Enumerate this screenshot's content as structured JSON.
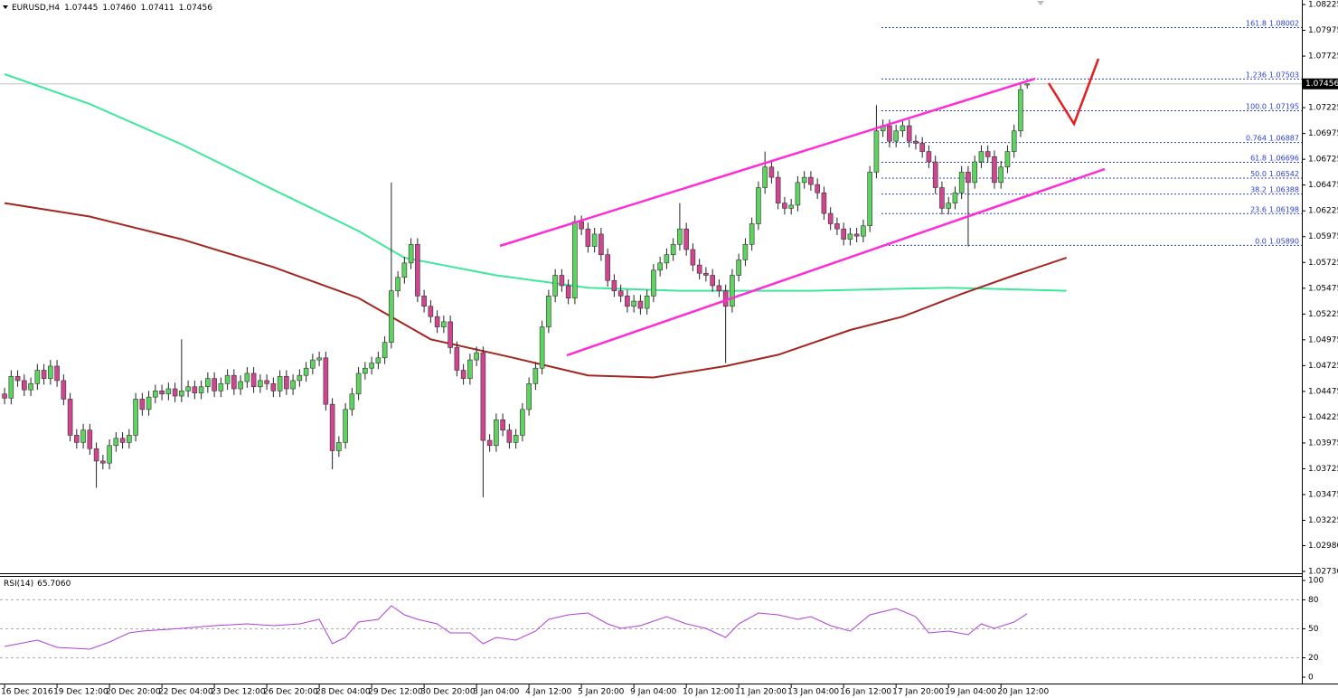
{
  "chart_data": {
    "type": "candlestick",
    "symbol": "EURUSD,H4",
    "header_values": [
      1.07445,
      {
        "value": 1.0746,
        "label": "1.07460"
      },
      1.07411,
      1.07456
    ],
    "xlim": [
      -0.7,
      197.9
    ],
    "ylim": [
      1.0273,
      1.08225
    ],
    "yticks": [
      1.08225,
      1.07975,
      1.07725,
      1.07225,
      1.06975,
      1.06725,
      1.06475,
      1.06225,
      1.05975,
      1.05725,
      1.05475,
      1.05225,
      1.04975,
      1.04725,
      1.04475,
      1.04225,
      1.03975,
      1.03725,
      1.03475,
      1.03225,
      {
        "value": 1.0298,
        "label": "1.02980"
      },
      {
        "value": 1.0273,
        "label": "1.02730"
      }
    ],
    "xticks": [
      {
        "value": 0,
        "label": "16 Dec 2016"
      },
      {
        "value": 8,
        "label": "19 Dec 12:00"
      },
      {
        "value": 16,
        "label": "20 Dec 20:00"
      },
      {
        "value": 24,
        "label": "22 Dec 04:00"
      },
      {
        "value": 32,
        "label": "23 Dec 12:00"
      },
      {
        "value": 40,
        "label": "26 Dec 20:00"
      },
      {
        "value": 48,
        "label": "28 Dec 04:00"
      },
      {
        "value": 56,
        "label": "29 Dec 12:00"
      },
      {
        "value": 64,
        "label": "30 Dec 20:00"
      },
      {
        "value": 72,
        "label": "3 Jan 04:00"
      },
      {
        "value": 80,
        "label": "4 Jan 12:00"
      },
      {
        "value": 88,
        "label": "5 Jan 20:00"
      },
      {
        "value": 96,
        "label": "9 Jan 04:00"
      },
      {
        "value": 104,
        "label": "10 Jan 12:00"
      },
      {
        "value": 112,
        "label": "11 Jan 20:00"
      },
      {
        "value": 120,
        "label": "13 Jan 04:00"
      },
      {
        "value": 128,
        "label": "16 Jan 12:00"
      },
      {
        "value": 136,
        "label": "17 Jan 20:00"
      },
      {
        "value": 144,
        "label": "19 Jan 04:00"
      },
      {
        "value": 152,
        "label": "20 Jan 12:00"
      }
    ],
    "up_color": "#5fd35f",
    "down_color": "#d0458f",
    "ohlc": [
      [
        1.0445,
        1.0451,
        1.0435,
        1.0441
      ],
      [
        1.0441,
        1.0468,
        1.0435,
        1.0462
      ],
      [
        1.0462,
        1.0468,
        1.0452,
        1.0458
      ],
      [
        1.0458,
        1.0464,
        1.0443,
        1.0449
      ],
      [
        1.0449,
        1.0461,
        1.0443,
        1.0455
      ],
      [
        1.0455,
        1.0474,
        1.0449,
        1.0468
      ],
      [
        1.0468,
        1.0474,
        1.0454,
        1.046
      ],
      [
        1.046,
        1.0478,
        1.0454,
        1.0472
      ],
      [
        1.0472,
        1.0478,
        1.0452,
        1.0458
      ],
      [
        1.0458,
        1.0464,
        1.0434,
        1.044
      ],
      [
        1.044,
        1.0446,
        1.0399,
        1.0405
      ],
      [
        1.0405,
        1.0411,
        1.0392,
        1.0398
      ],
      [
        1.0398,
        1.0416,
        1.0392,
        1.041
      ],
      [
        1.041,
        1.0416,
        1.0386,
        1.0392
      ],
      [
        1.0392,
        1.0398,
        1.0354,
        1.038
      ],
      [
        1.038,
        1.0386,
        1.0372,
        1.0378
      ],
      [
        1.0378,
        1.0401,
        1.0372,
        1.0395
      ],
      [
        1.0395,
        1.0408,
        1.0389,
        1.0402
      ],
      [
        1.0402,
        1.0408,
        1.0392,
        1.0398
      ],
      [
        1.0398,
        1.0411,
        1.0392,
        1.0405
      ],
      [
        1.0405,
        1.0446,
        1.0399,
        1.044
      ],
      [
        1.044,
        1.0446,
        1.0424,
        1.043
      ],
      [
        1.043,
        1.0448,
        1.0424,
        1.0442
      ],
      [
        1.0442,
        1.0454,
        1.0436,
        1.0448
      ],
      [
        1.0448,
        1.0454,
        1.0439,
        1.0445
      ],
      [
        1.0445,
        1.0456,
        1.0439,
        1.045
      ],
      [
        1.045,
        1.0456,
        1.0437,
        1.0443
      ],
      [
        1.0443,
        1.0498,
        1.0437,
        1.0448
      ],
      [
        1.0448,
        1.0458,
        1.0442,
        1.0452
      ],
      [
        1.0452,
        1.0458,
        1.044,
        1.0446
      ],
      [
        1.0446,
        1.0458,
        1.044,
        1.0452
      ],
      [
        1.0452,
        1.0466,
        1.0446,
        1.046
      ],
      [
        1.046,
        1.0466,
        1.0442,
        1.0448
      ],
      [
        1.0448,
        1.0461,
        1.0442,
        1.0455
      ],
      [
        1.0455,
        1.0469,
        1.0449,
        1.0463
      ],
      [
        1.0463,
        1.0469,
        1.0444,
        1.045
      ],
      [
        1.045,
        1.0463,
        1.0444,
        1.0457
      ],
      [
        1.0457,
        1.0471,
        1.0451,
        1.0465
      ],
      [
        1.0465,
        1.0471,
        1.0446,
        1.0452
      ],
      [
        1.0452,
        1.0464,
        1.0446,
        1.0458
      ],
      [
        1.0458,
        1.0464,
        1.0449,
        1.0455
      ],
      [
        1.0455,
        1.0461,
        1.0442,
        1.0448
      ],
      [
        1.0448,
        1.0468,
        1.0442,
        1.0462
      ],
      [
        1.0462,
        1.0468,
        1.0444,
        1.045
      ],
      [
        1.045,
        1.0464,
        1.0444,
        1.0458
      ],
      [
        1.0458,
        1.0469,
        1.0452,
        1.0463
      ],
      [
        1.0463,
        1.0476,
        1.0457,
        1.047
      ],
      [
        1.047,
        1.0484,
        1.0464,
        1.0478
      ],
      [
        1.0478,
        1.0486,
        1.0472,
        1.048
      ],
      [
        1.048,
        1.0486,
        1.0429,
        1.0435
      ],
      [
        1.0435,
        1.0441,
        1.0372,
        1.039
      ],
      [
        1.039,
        1.0404,
        1.0384,
        1.0398
      ],
      [
        1.0398,
        1.0436,
        1.0392,
        1.043
      ],
      [
        1.043,
        1.0451,
        1.0424,
        1.0445
      ],
      [
        1.0445,
        1.0471,
        1.0439,
        1.0465
      ],
      [
        1.0465,
        1.0476,
        1.0459,
        1.047
      ],
      [
        1.047,
        1.0481,
        1.0464,
        1.0475
      ],
      [
        1.0475,
        1.0486,
        1.0469,
        1.048
      ],
      [
        1.048,
        1.0501,
        1.0474,
        1.0495
      ],
      [
        1.0495,
        1.065,
        1.0489,
        1.0545
      ],
      [
        1.0545,
        1.0564,
        1.0539,
        1.0558
      ],
      [
        1.0558,
        1.0578,
        1.0552,
        1.0572
      ],
      [
        1.0572,
        1.0596,
        1.0566,
        1.059
      ],
      [
        1.059,
        1.0596,
        1.0534,
        1.054
      ],
      [
        1.054,
        1.0546,
        1.0524,
        1.053
      ],
      [
        1.053,
        1.0536,
        1.0514,
        1.052
      ],
      [
        1.052,
        1.0526,
        1.0504,
        1.051
      ],
      [
        1.051,
        1.0521,
        1.0504,
        1.0515
      ],
      [
        1.0515,
        1.0521,
        1.0484,
        1.049
      ],
      [
        1.049,
        1.0496,
        1.0462,
        1.0468
      ],
      [
        1.0468,
        1.0474,
        1.0454,
        1.046
      ],
      [
        1.046,
        1.0484,
        1.0454,
        1.0478
      ],
      [
        1.0478,
        1.0491,
        1.0472,
        1.0485
      ],
      [
        1.0485,
        1.0491,
        1.0345,
        1.04
      ],
      [
        1.04,
        1.0406,
        1.0389,
        1.0395
      ],
      [
        1.0395,
        1.0426,
        1.0389,
        1.042
      ],
      [
        1.042,
        1.0426,
        1.0404,
        1.041
      ],
      [
        1.041,
        1.0416,
        1.0392,
        1.0398
      ],
      [
        1.0398,
        1.0411,
        1.0392,
        1.0405
      ],
      [
        1.0405,
        1.0436,
        1.0399,
        1.043
      ],
      [
        1.043,
        1.0461,
        1.0424,
        1.0455
      ],
      [
        1.0455,
        1.0476,
        1.0449,
        1.047
      ],
      [
        1.047,
        1.0516,
        1.0464,
        1.051
      ],
      [
        1.051,
        1.0546,
        1.0504,
        1.054
      ],
      [
        1.054,
        1.0566,
        1.0534,
        1.056
      ],
      [
        1.056,
        1.0566,
        1.0544,
        1.055
      ],
      [
        1.055,
        1.0556,
        1.0532,
        1.0538
      ],
      [
        1.0538,
        1.0618,
        1.0532,
        1.0612
      ],
      [
        1.0612,
        1.0618,
        1.0599,
        1.0605
      ],
      [
        1.0605,
        1.0611,
        1.0582,
        1.0588
      ],
      [
        1.0588,
        1.0606,
        1.0582,
        1.06
      ],
      [
        1.06,
        1.0606,
        1.0574,
        1.058
      ],
      [
        1.058,
        1.0586,
        1.0549,
        1.0555
      ],
      [
        1.0555,
        1.0561,
        1.0539,
        1.0545
      ],
      [
        1.0545,
        1.0551,
        1.0534,
        1.054
      ],
      [
        1.054,
        1.0546,
        1.0524,
        1.053
      ],
      [
        1.053,
        1.0541,
        1.0524,
        1.0535
      ],
      [
        1.0535,
        1.0541,
        1.0522,
        1.0528
      ],
      [
        1.0528,
        1.0546,
        1.0522,
        1.054
      ],
      [
        1.054,
        1.0571,
        1.0534,
        1.0565
      ],
      [
        1.0565,
        1.0578,
        1.0559,
        1.0572
      ],
      [
        1.0572,
        1.0586,
        1.0566,
        1.058
      ],
      [
        1.058,
        1.0596,
        1.0574,
        1.059
      ],
      [
        1.059,
        1.063,
        1.0584,
        1.0605
      ],
      [
        1.0605,
        1.0611,
        1.0579,
        1.0585
      ],
      [
        1.0585,
        1.0591,
        1.0564,
        1.057
      ],
      [
        1.057,
        1.0576,
        1.0556,
        1.0562
      ],
      [
        1.0562,
        1.0568,
        1.0554,
        1.056
      ],
      [
        1.056,
        1.0566,
        1.0544,
        1.055
      ],
      [
        1.055,
        1.0556,
        1.0539,
        1.0545
      ],
      [
        1.0545,
        1.0551,
        1.0475,
        1.053
      ],
      [
        1.053,
        1.0566,
        1.0524,
        1.056
      ],
      [
        1.056,
        1.0581,
        1.0554,
        1.0575
      ],
      [
        1.0575,
        1.0596,
        1.0569,
        1.059
      ],
      [
        1.059,
        1.0616,
        1.0584,
        1.061
      ],
      [
        1.061,
        1.0651,
        1.0604,
        1.0645
      ],
      [
        1.0645,
        1.068,
        1.0639,
        1.0665
      ],
      [
        1.0665,
        1.0671,
        1.0649,
        1.0655
      ],
      [
        1.0655,
        1.0661,
        1.0624,
        1.063
      ],
      [
        1.063,
        1.0636,
        1.0619,
        1.0625
      ],
      [
        1.0625,
        1.0634,
        1.0619,
        1.0628
      ],
      [
        1.0628,
        1.0656,
        1.0622,
        1.065
      ],
      [
        1.065,
        1.0661,
        1.0644,
        1.0655
      ],
      [
        1.0655,
        1.0661,
        1.0642,
        1.0648
      ],
      [
        1.0648,
        1.0654,
        1.0634,
        1.064
      ],
      [
        1.064,
        1.0646,
        1.0614,
        1.062
      ],
      [
        1.062,
        1.0626,
        1.0604,
        1.061
      ],
      [
        1.061,
        1.0616,
        1.0599,
        1.0605
      ],
      [
        1.0605,
        1.0611,
        1.0589,
        1.0595
      ],
      [
        1.0595,
        1.0606,
        1.0589,
        1.06
      ],
      [
        1.06,
        1.0606,
        1.0592,
        1.0598
      ],
      [
        1.0598,
        1.0614,
        1.0592,
        1.0608
      ],
      [
        1.0608,
        1.0666,
        1.0602,
        1.066
      ],
      [
        1.066,
        1.0725,
        1.0654,
        1.07
      ],
      [
        1.07,
        1.0711,
        1.0694,
        1.0705
      ],
      [
        1.0705,
        1.0711,
        1.0684,
        1.069
      ],
      [
        1.069,
        1.0706,
        1.0684,
        1.07
      ],
      [
        1.07,
        1.0711,
        1.0694,
        1.0705
      ],
      [
        1.0705,
        1.0711,
        1.0684,
        1.069
      ],
      [
        1.069,
        1.0696,
        1.0682,
        1.0688
      ],
      [
        1.0688,
        1.0694,
        1.0674,
        1.068
      ],
      [
        1.068,
        1.0686,
        1.0664,
        1.067
      ],
      [
        1.067,
        1.0676,
        1.0639,
        1.0645
      ],
      [
        1.0645,
        1.0651,
        1.0619,
        1.0625
      ],
      [
        1.0625,
        1.0636,
        1.0619,
        1.063
      ],
      [
        1.063,
        1.0646,
        1.0624,
        1.064
      ],
      [
        1.064,
        1.0666,
        1.0634,
        1.066
      ],
      [
        1.066,
        1.0666,
        1.0588,
        1.065
      ],
      [
        1.065,
        1.0676,
        1.0644,
        1.067
      ],
      [
        1.067,
        1.0686,
        1.0664,
        1.068
      ],
      [
        1.068,
        1.0686,
        1.0669,
        1.0675
      ],
      [
        1.0675,
        1.0681,
        1.0644,
        1.065
      ],
      [
        1.065,
        1.0671,
        1.0644,
        1.0665
      ],
      [
        1.0665,
        1.0686,
        1.0659,
        1.068
      ],
      [
        1.068,
        1.0706,
        1.0674,
        1.07
      ],
      [
        1.07,
        1.0746,
        1.0694,
        1.074
      ],
      [
        1.07445,
        1.0746,
        1.07411,
        1.07456
      ]
    ],
    "overlays": [
      {
        "color": "#3de89a",
        "x": [
          0,
          13,
          27,
          41,
          54,
          61,
          75,
          89,
          103,
          123,
          144,
          162
        ],
        "values": [
          1.0755,
          1.0726,
          1.0687,
          1.0643,
          1.0603,
          1.0577,
          1.056,
          1.0548,
          1.0545,
          1.0545,
          1.0548,
          1.0545
        ]
      },
      {
        "color": "#a3261f",
        "x": [
          0,
          13,
          27,
          41,
          54,
          65,
          77,
          89,
          99,
          110,
          118,
          129,
          137,
          146,
          154,
          162
        ],
        "values": [
          1.063,
          1.0617,
          1.0595,
          1.0568,
          1.0538,
          1.0498,
          1.0481,
          1.0463,
          1.0461,
          1.0472,
          1.0483,
          1.0507,
          1.052,
          1.0542,
          1.056,
          1.0577
        ]
      }
    ],
    "fibonacci": {
      "color": "#2b3fcf",
      "levels": [
        {
          "level": "161.8",
          "price": 1.08002
        },
        {
          "level": "1.236",
          "price": 1.07503
        },
        {
          "level": "100.0",
          "price": 1.07195
        },
        {
          "level": "0.764",
          "price": 1.06887
        },
        {
          "level": "61.8",
          "price": 1.06696
        },
        {
          "level": "50.0",
          "price": 1.06542
        },
        {
          "level": "38.2",
          "price": 1.06388
        },
        {
          "level": "23.6",
          "price": 1.06198
        },
        {
          "level": "0.0",
          "price": {
            "value": 1.0589,
            "label": "1.05890"
          }
        }
      ]
    },
    "last_price": 1.07456,
    "rsi": {
      "title": "RSI(14)",
      "value": {
        "value": 65.706,
        "label": "65.7060"
      },
      "color": "#b23fd6",
      "ylim": [
        0,
        100
      ],
      "yticks": [
        100,
        80,
        50,
        20,
        0
      ],
      "grid_levels": [
        80,
        50,
        20
      ],
      "x": [
        0,
        5,
        8,
        13,
        16,
        19,
        21,
        27,
        32,
        37,
        41,
        45,
        48,
        50,
        52,
        54,
        57,
        59,
        61,
        63,
        66,
        68,
        71,
        73,
        75,
        78,
        81,
        83,
        86,
        89,
        92,
        94,
        97,
        101,
        104,
        107,
        110,
        112,
        115,
        118,
        121,
        123,
        126,
        129,
        132,
        136,
        139,
        141,
        144,
        147,
        149,
        151,
        154,
        156
      ],
      "values": [
        31.8,
        38.3,
        30.8,
        29.0,
        36.4,
        45.8,
        47.7,
        50.5,
        53.3,
        55.1,
        53.3,
        55.1,
        59.8,
        34.6,
        41.1,
        57.0,
        59.8,
        73.8,
        64.5,
        59.8,
        55.1,
        45.8,
        45.8,
        34.6,
        41.1,
        38.3,
        47.7,
        59.8,
        64.5,
        66.4,
        55.1,
        50.5,
        53.3,
        62.6,
        55.1,
        50.5,
        41.1,
        55.1,
        66.4,
        64.5,
        59.8,
        62.6,
        53.3,
        47.7,
        64.5,
        71.0,
        62.6,
        45.8,
        47.7,
        43.9,
        55.1,
        50.5,
        57.0,
        65.7
      ]
    }
  }
}
